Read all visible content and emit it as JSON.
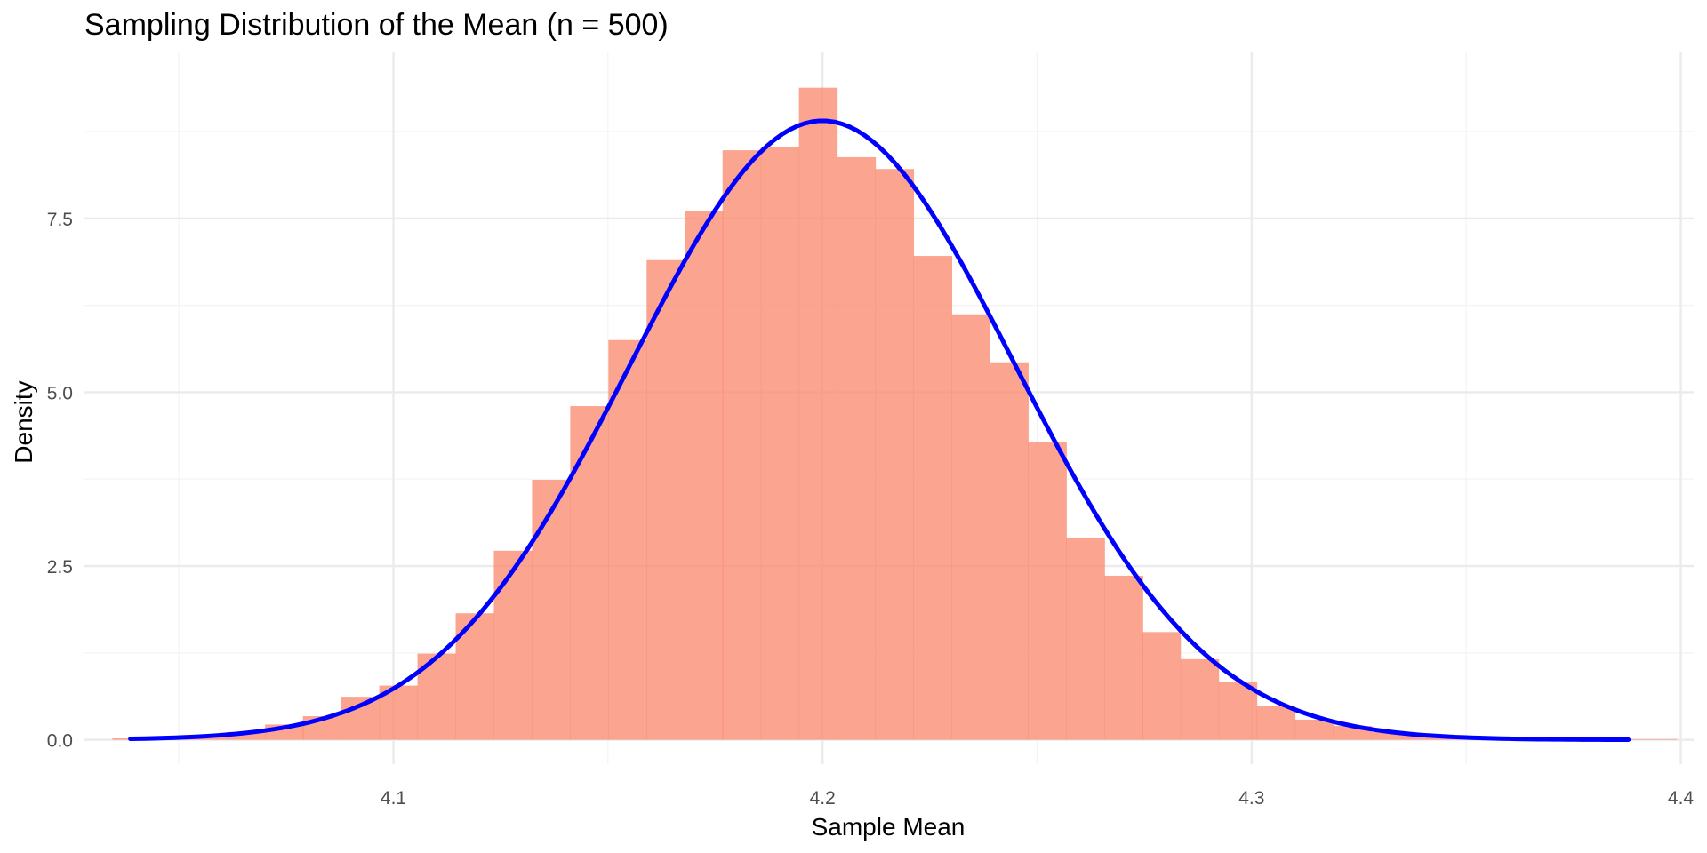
{
  "chart_data": {
    "type": "bar",
    "title": "Sampling Distribution of the Mean (n = 500)",
    "xlabel": "Sample Mean",
    "ylabel": "Density",
    "xlim": [
      4.028,
      4.403
    ],
    "ylim": [
      -0.35,
      9.9
    ],
    "x_ticks": [
      4.1,
      4.2,
      4.3,
      4.4
    ],
    "x_tick_labels": [
      "4.1",
      "4.2",
      "4.3",
      "4.4"
    ],
    "y_ticks": [
      0.0,
      2.5,
      5.0,
      7.5
    ],
    "y_tick_labels": [
      "0.0",
      "2.5",
      "5.0",
      "7.5"
    ],
    "grid": true,
    "legend": "none",
    "histogram": {
      "color": "#FA8F74",
      "opacity": 0.8,
      "bin_width": 0.00889,
      "bin_starts": [
        4.0345,
        4.0434,
        4.0523,
        4.0612,
        4.0701,
        4.0789,
        4.0878,
        4.0967,
        4.1056,
        4.1145,
        4.1234,
        4.1323,
        4.1412,
        4.1501,
        4.159,
        4.1679,
        4.1767,
        4.1856,
        4.1945,
        4.2034,
        4.2123,
        4.2212,
        4.2301,
        4.239,
        4.2479,
        4.2568,
        4.2657,
        4.2745,
        4.2834,
        4.2923,
        4.3012,
        4.3101,
        4.319,
        4.3279,
        4.3368,
        4.3457,
        4.3546,
        4.3635,
        4.3723,
        4.3812,
        4.3901
      ],
      "densities": [
        0.02,
        0.03,
        0.06,
        0.11,
        0.22,
        0.34,
        0.62,
        0.78,
        1.24,
        1.82,
        2.72,
        3.74,
        4.8,
        5.75,
        6.9,
        7.6,
        8.48,
        8.53,
        9.38,
        8.38,
        8.21,
        6.96,
        6.12,
        5.43,
        4.28,
        2.91,
        2.36,
        1.55,
        1.16,
        0.83,
        0.49,
        0.29,
        0.2,
        0.11,
        0.06,
        0.03,
        0.02,
        0.01,
        0.01,
        0.01,
        0.01
      ]
    },
    "series": [
      {
        "type": "line",
        "color": "#0000FF",
        "distribution": "normal",
        "mean": 4.2,
        "sd": 0.0448,
        "x_range": [
          4.0387,
          4.3878
        ]
      }
    ]
  }
}
